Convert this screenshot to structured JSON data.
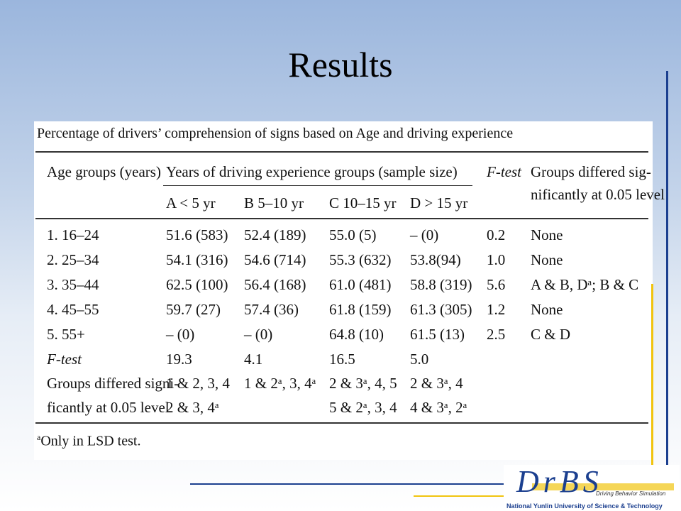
{
  "slide": {
    "title": "Results"
  },
  "table": {
    "caption": "Percentage of drivers’ comprehension of signs based on Age and driving experience",
    "header": {
      "age_groups": "Age groups (years)",
      "experience_groups": "Years of driving experience groups (sample size)",
      "ftest": "F-test",
      "groups_line1": "Groups differed sig-",
      "groups_line2": "nificantly at 0.05 level",
      "sub": [
        "A < 5 yr",
        "B 5–10 yr",
        "C 10–15 yr",
        "D > 15 yr"
      ]
    },
    "rows": [
      {
        "age": "1. 16–24",
        "a": "51.6 (583)",
        "b": "52.4 (189)",
        "c": "55.0 (5)",
        "d": "– (0)",
        "f": "0.2",
        "g": "None"
      },
      {
        "age": "2. 25–34",
        "a": "54.1 (316)",
        "b": "54.6 (714)",
        "c": "55.3 (632)",
        "d": "53.8(94)",
        "f": "1.0",
        "g": "None"
      },
      {
        "age": "3. 35–44",
        "a": "62.5 (100)",
        "b": "56.4 (168)",
        "c": "61.0 (481)",
        "d": "58.8 (319)",
        "f": "5.6",
        "g": "A & B, Dᵃ; B & C"
      },
      {
        "age": "4. 45–55",
        "a": "59.7 (27)",
        "b": "57.4 (36)",
        "c": "61.8 (159)",
        "d": "61.3 (305)",
        "f": "1.2",
        "g": "None"
      },
      {
        "age": "5. 55+",
        "a": "– (0)",
        "b": "– (0)",
        "c": "64.8 (10)",
        "d": "61.5 (13)",
        "f": "2.5",
        "g": "C & D"
      },
      {
        "age": "F-test",
        "a": "19.3",
        "b": "4.1",
        "c": "16.5",
        "d": "5.0",
        "f": "",
        "g": ""
      },
      {
        "age": "Groups differed signi-",
        "a": "1 & 2, 3, 4",
        "b": "1 & 2ᵃ, 3, 4ᵃ",
        "c": "2 & 3ᵃ, 4, 5",
        "d": "2 & 3ᵃ, 4",
        "f": "",
        "g": ""
      },
      {
        "age": "ficantly at 0.05 level",
        "a": "2 & 3, 4ᵃ",
        "b": "",
        "c": "5 & 2ᵃ, 3, 4",
        "d": "4 & 3ᵃ, 2ᵃ",
        "f": "",
        "g": ""
      }
    ],
    "footnote_mark": "a",
    "footnote": "Only in LSD test."
  },
  "logo": {
    "text": "DrBS",
    "sub": "Driving Behavior Simulation",
    "university": "National Yunlin University of Science & Technology"
  }
}
